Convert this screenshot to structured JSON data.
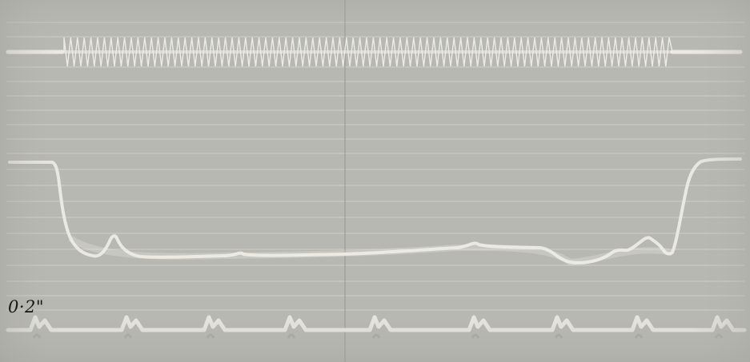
{
  "time_marker": {
    "label": "0·2\""
  },
  "colors": {
    "paper": "#b8b8b3",
    "trace": "#eceae4",
    "grid_line": "#dcdcd6",
    "ink": "#161616"
  }
}
